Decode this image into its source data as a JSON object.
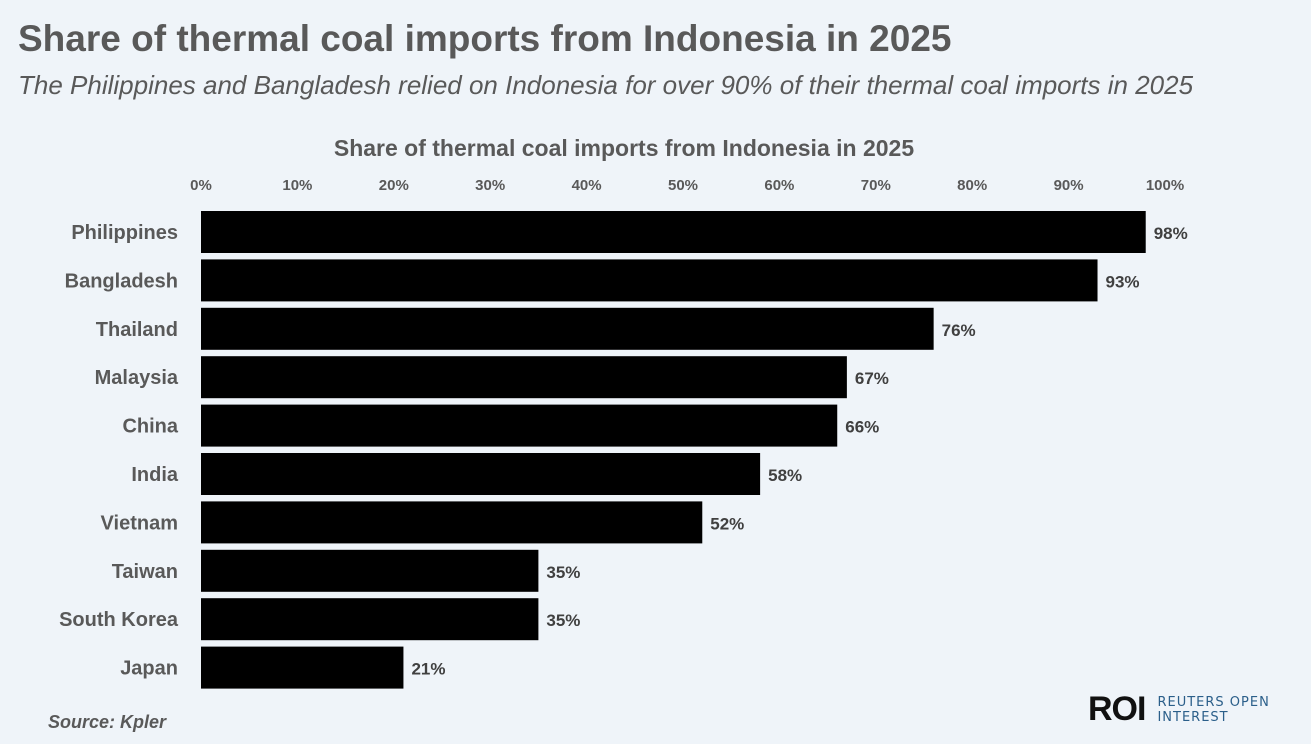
{
  "header": {
    "title": "Share of thermal coal imports from Indonesia in 2025",
    "subtitle": "The Philippines and Bangladesh relied on Indonesia for over 90% of their thermal coal imports in 2025"
  },
  "chart_data": {
    "type": "bar",
    "orientation": "horizontal",
    "title": "Share of thermal coal imports from Indonesia in 2025",
    "categories": [
      "Philippines",
      "Bangladesh",
      "Thailand",
      "Malaysia",
      "China",
      "India",
      "Vietnam",
      "Taiwan",
      "South Korea",
      "Japan"
    ],
    "values": [
      98,
      93,
      76,
      67,
      66,
      58,
      52,
      35,
      35,
      21
    ],
    "data_labels": [
      "98%",
      "93%",
      "76%",
      "67%",
      "66%",
      "58%",
      "52%",
      "35%",
      "35%",
      "21%"
    ],
    "xlim": [
      0,
      100
    ],
    "xaxis_position": "top",
    "x_ticks": [
      "0%",
      "10%",
      "20%",
      "30%",
      "40%",
      "50%",
      "60%",
      "70%",
      "80%",
      "90%",
      "100%"
    ],
    "grid": false,
    "bar_color": "#000000"
  },
  "footer": {
    "source": "Source:  Kpler",
    "logo_mark": "ROI",
    "logo_line1": "REUTERS OPEN",
    "logo_line2": "INTEREST"
  },
  "colors": {
    "background": "#eff4f9",
    "text": "#595959",
    "logo_accent": "#2b5f8a"
  }
}
